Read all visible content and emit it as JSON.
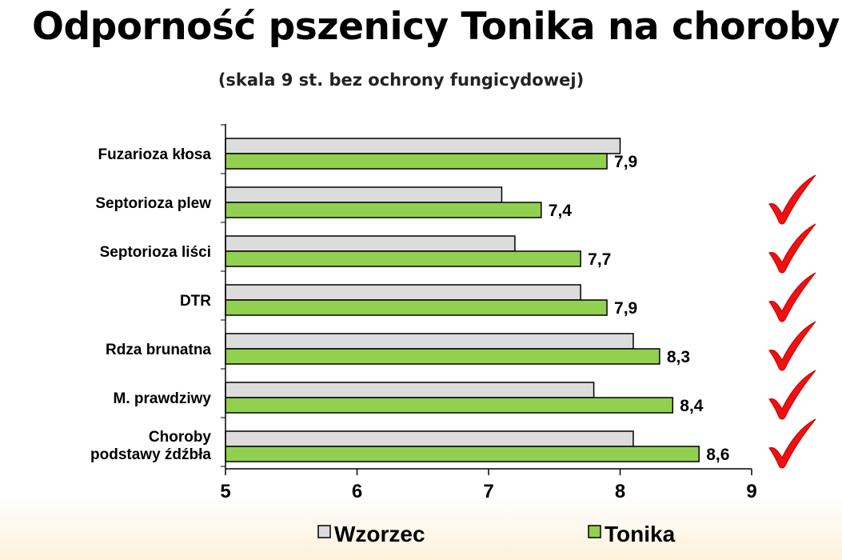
{
  "title": "Odporność pszenicy Tonika na choroby",
  "subtitle": "(skala 9 st. bez ochrony fungicydowej)",
  "colors": {
    "wzorzec": "#dcdcdc",
    "tonika": "#92d050",
    "check": "#ee1111"
  },
  "chart_data": {
    "type": "bar",
    "orientation": "horizontal",
    "categories": [
      "Fuzarioza kłosa",
      "Septorioza plew",
      "Septorioza liści",
      "DTR",
      "Rdza brunatna",
      "M. prawdziwy",
      "Choroby podstawy źdźbła"
    ],
    "category_lines": [
      [
        "Fuzarioza kłosa"
      ],
      [
        "Septorioza plew"
      ],
      [
        "Septorioza liści"
      ],
      [
        "DTR"
      ],
      [
        "Rdza brunatna"
      ],
      [
        "M. prawdziwy"
      ],
      [
        "Choroby",
        "podstawy źdźbła"
      ]
    ],
    "series": [
      {
        "name": "Wzorzec",
        "values": [
          8.0,
          7.1,
          7.2,
          7.7,
          8.1,
          7.8,
          8.1
        ]
      },
      {
        "name": "Tonika",
        "values": [
          7.9,
          7.4,
          7.7,
          7.9,
          8.3,
          8.4,
          8.6
        ]
      }
    ],
    "data_labels": [
      "7,9",
      "7,4",
      "7,7",
      "7,9",
      "8,3",
      "8,4",
      "8,6"
    ],
    "xlim": [
      5,
      9
    ],
    "xticks": [
      "5",
      "6",
      "7",
      "8",
      "9"
    ],
    "grid": false,
    "legend": "bottom",
    "checkmarks": [
      false,
      true,
      true,
      true,
      true,
      true,
      true
    ]
  }
}
